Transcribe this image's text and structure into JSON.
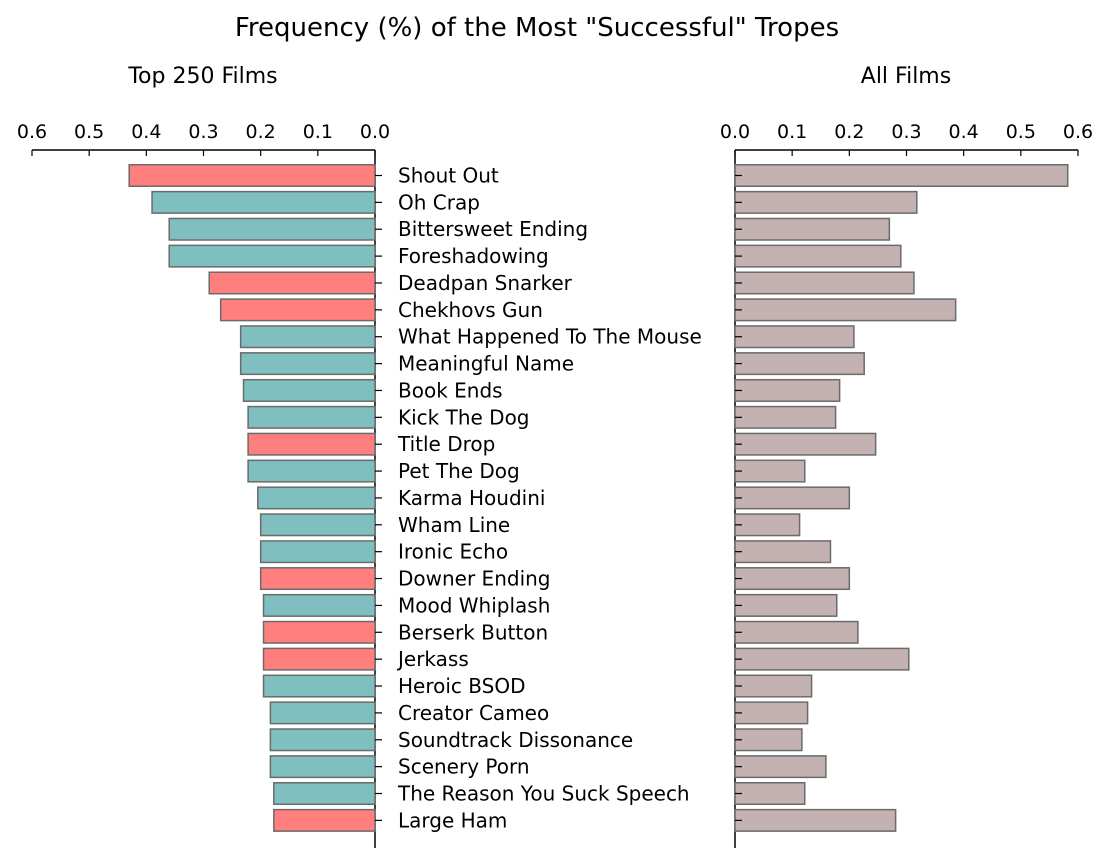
{
  "chart_data": {
    "type": "bar",
    "orientation": "horizontal",
    "title": "Frequency (%) of the Most \"Successful\" Tropes",
    "categories": [
      "Shout Out",
      "Oh Crap",
      "Bittersweet Ending",
      "Foreshadowing",
      "Deadpan Snarker",
      "Chekhovs Gun",
      "What Happened To The Mouse",
      "Meaningful Name",
      "Book Ends",
      "Kick The Dog",
      "Title Drop",
      "Pet The Dog",
      "Karma Houdini",
      "Wham Line",
      "Ironic Echo",
      "Downer Ending",
      "Mood Whiplash",
      "Berserk Button",
      "Jerkass",
      "Heroic BSOD",
      "Creator Cameo",
      "Soundtrack Dissonance",
      "Scenery Porn",
      "The Reason You Suck Speech",
      "Large Ham"
    ],
    "panels": [
      {
        "title": "Top 250 Films",
        "axis_direction": "reversed",
        "xlim": [
          0,
          0.6
        ],
        "ticks": [
          "0.6",
          "0.5",
          "0.4",
          "0.3",
          "0.2",
          "0.1",
          "0.0"
        ],
        "values": [
          0.43,
          0.39,
          0.36,
          0.36,
          0.29,
          0.27,
          0.235,
          0.235,
          0.23,
          0.222,
          0.222,
          0.222,
          0.205,
          0.2,
          0.2,
          0.2,
          0.195,
          0.195,
          0.195,
          0.195,
          0.183,
          0.183,
          0.183,
          0.177,
          0.177
        ],
        "highlighted": [
          true,
          false,
          false,
          false,
          true,
          true,
          false,
          false,
          false,
          false,
          true,
          false,
          false,
          false,
          false,
          true,
          false,
          true,
          true,
          false,
          false,
          false,
          false,
          false,
          true
        ]
      },
      {
        "title": "All Films",
        "axis_direction": "normal",
        "xlim": [
          0,
          0.6
        ],
        "ticks": [
          "0.0",
          "0.1",
          "0.2",
          "0.3",
          "0.4",
          "0.5",
          "0.6"
        ],
        "values": [
          0.582,
          0.318,
          0.27,
          0.29,
          0.313,
          0.386,
          0.208,
          0.226,
          0.183,
          0.176,
          0.246,
          0.122,
          0.2,
          0.113,
          0.167,
          0.2,
          0.178,
          0.215,
          0.304,
          0.134,
          0.127,
          0.117,
          0.159,
          0.122,
          0.281
        ]
      }
    ],
    "colors": {
      "highlight": "#ff7f7f",
      "normal": "#7fbfbf",
      "all_films": "#c4b1b1",
      "bar_edge": "#6b6b6b",
      "axis": "#000000"
    },
    "grid": false,
    "legend": "none"
  }
}
